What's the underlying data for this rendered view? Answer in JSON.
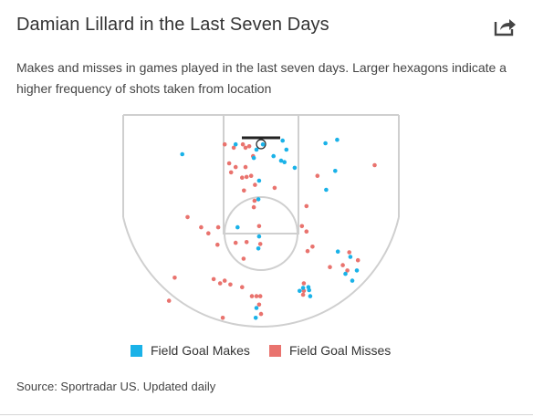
{
  "header": {
    "title": "Damian Lillard in the Last Seven Days",
    "share_icon": "share-arrow-icon"
  },
  "description": "Makes and misses in games played in the last seven days. Larger hexagons indicate a higher frequency of shots taken from location",
  "legend": {
    "makes_label": "Field Goal Makes",
    "misses_label": "Field Goal Misses"
  },
  "footer": {
    "source": "Source: Sportradar US. Updated daily"
  },
  "colors": {
    "make": "#1ab2e8",
    "miss": "#e9736e",
    "court_lines": "#cfcfcf",
    "rim": "#222222"
  },
  "chart_data": {
    "type": "scatter",
    "title": "Damian Lillard in the Last Seven Days",
    "xlabel": "",
    "ylabel": "",
    "coordinate_units": "feet from basket (x: left/right of rim, y: distance from baseline toward half court)",
    "grid": false,
    "legend_placement": "bottom-center",
    "series": [
      {
        "name": "Field Goal Makes",
        "color": "#1ab2e8",
        "points": [
          [
            -20.8,
            7.9
          ],
          [
            -6.7,
            5.3
          ],
          [
            -1.9,
            8.9
          ],
          [
            -1.2,
            6.7
          ],
          [
            0.5,
            5.3
          ],
          [
            3.3,
            8.4
          ],
          [
            5.3,
            9.6
          ],
          [
            6.7,
            6.7
          ],
          [
            5.7,
            4.3
          ],
          [
            6.2,
            10.0
          ],
          [
            8.9,
            11.5
          ],
          [
            -0.5,
            14.9
          ],
          [
            -0.7,
            19.8
          ],
          [
            -6.2,
            27.2
          ],
          [
            -0.5,
            29.6
          ],
          [
            -0.7,
            32.8
          ],
          [
            17.0,
            5.0
          ],
          [
            20.1,
            4.1
          ],
          [
            17.2,
            17.3
          ],
          [
            19.6,
            12.3
          ],
          [
            20.3,
            33.6
          ],
          [
            23.6,
            35.0
          ],
          [
            25.3,
            38.6
          ],
          [
            22.3,
            39.5
          ],
          [
            10.2,
            44.0
          ],
          [
            11.1,
            43.2
          ],
          [
            12.5,
            43.0
          ],
          [
            12.7,
            43.8
          ],
          [
            13.0,
            45.4
          ],
          [
            -1.2,
            48.5
          ],
          [
            -1.4,
            51.1
          ],
          [
            24.1,
            41.3
          ]
        ]
      },
      {
        "name": "Field Goal Misses",
        "color": "#e9736e",
        "points": [
          [
            -9.6,
            5.3
          ],
          [
            -7.2,
            6.2
          ],
          [
            -4.8,
            5.3
          ],
          [
            -4.1,
            6.2
          ],
          [
            -3.1,
            5.8
          ],
          [
            -2.1,
            8.4
          ],
          [
            -4.1,
            11.3
          ],
          [
            -6.7,
            11.3
          ],
          [
            -8.4,
            10.3
          ],
          [
            -7.9,
            12.7
          ],
          [
            -5.0,
            14.1
          ],
          [
            -3.8,
            13.9
          ],
          [
            -2.6,
            13.6
          ],
          [
            -1.6,
            16.0
          ],
          [
            -4.5,
            17.5
          ],
          [
            -1.7,
            20.2
          ],
          [
            -1.9,
            21.9
          ],
          [
            14.9,
            13.6
          ],
          [
            12.0,
            21.6
          ],
          [
            3.6,
            16.8
          ],
          [
            -19.4,
            24.5
          ],
          [
            -13.9,
            28.8
          ],
          [
            -11.3,
            27.2
          ],
          [
            -6.7,
            31.3
          ],
          [
            -15.8,
            27.2
          ],
          [
            -11.5,
            31.8
          ],
          [
            -3.8,
            31.1
          ],
          [
            -0.5,
            26.9
          ],
          [
            -0.2,
            31.6
          ],
          [
            10.8,
            26.9
          ],
          [
            -4.6,
            35.5
          ],
          [
            12.0,
            28.3
          ],
          [
            12.3,
            33.5
          ],
          [
            13.6,
            32.3
          ],
          [
            30.0,
            10.8
          ],
          [
            18.2,
            37.7
          ],
          [
            25.6,
            35.9
          ],
          [
            21.6,
            37.2
          ],
          [
            23.3,
            33.8
          ],
          [
            22.8,
            38.6
          ],
          [
            -10.8,
            42.0
          ],
          [
            -22.8,
            40.5
          ],
          [
            -12.5,
            40.9
          ],
          [
            -9.6,
            41.3
          ],
          [
            -8.1,
            42.3
          ],
          [
            -5.0,
            43.0
          ],
          [
            -2.4,
            45.4
          ],
          [
            -1.2,
            45.4
          ],
          [
            -0.2,
            45.4
          ],
          [
            11.3,
            42.0
          ],
          [
            11.1,
            45.0
          ],
          [
            -0.5,
            47.6
          ],
          [
            -10.1,
            51.1
          ],
          [
            -24.3,
            46.6
          ],
          [
            0.0,
            50.1
          ],
          [
            11.3,
            44.0
          ]
        ]
      }
    ]
  }
}
